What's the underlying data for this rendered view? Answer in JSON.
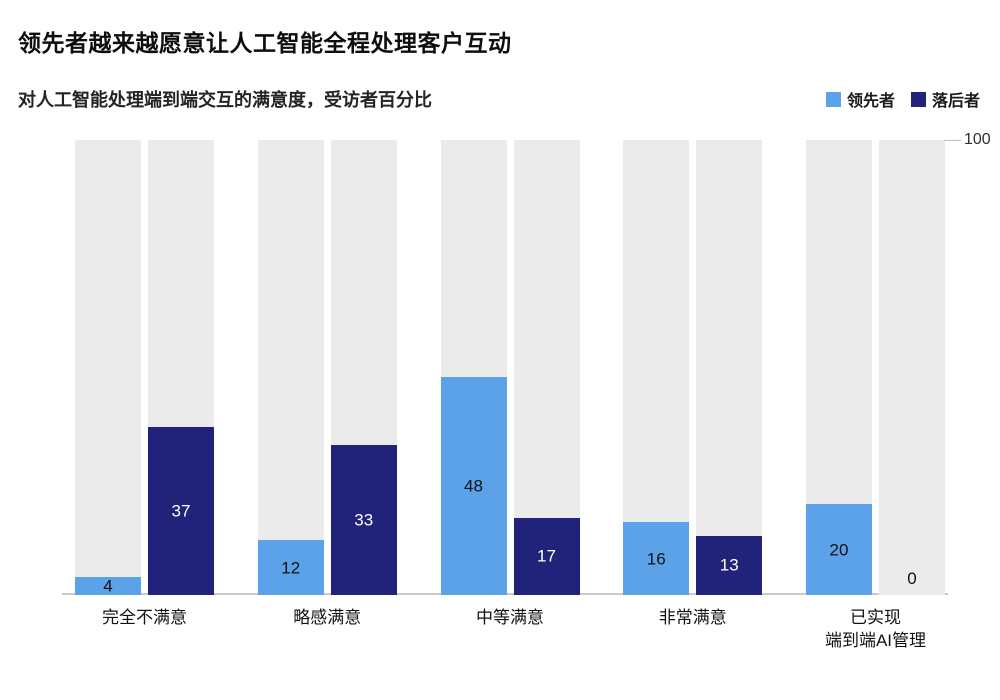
{
  "title": "领先者越来越愿意让人工智能全程处理客户互动",
  "subtitle": "对人工智能处理端到端交互的满意度，受访者百分比",
  "axis_max_label": "100",
  "colors": {
    "leader": "#5ba2e9",
    "laggard": "#21237a",
    "track": "#ebebeb",
    "axis_line": "#c9c9c9",
    "label_on_light": "#111111",
    "label_on_dark": "#ffffff"
  },
  "chart_data": {
    "type": "bar",
    "title": "领先者越来越愿意让人工智能全程处理客户互动",
    "subtitle": "对人工智能处理端到端交互的满意度，受访者百分比",
    "categories": [
      "完全不满意",
      "略感满意",
      "中等满意",
      "非常满意",
      "已实现\n端到端AI管理"
    ],
    "series": [
      {
        "name": "领先者",
        "color": "#5ba2e9",
        "values": [
          4,
          12,
          48,
          16,
          20
        ]
      },
      {
        "name": "落后者",
        "color": "#21237a",
        "values": [
          37,
          33,
          17,
          13,
          0
        ]
      }
    ],
    "ylim": [
      0,
      100
    ],
    "ylabel": "受访者百分比",
    "xlabel": "",
    "grid": false,
    "background_track": true,
    "legend_position": "top-right"
  }
}
